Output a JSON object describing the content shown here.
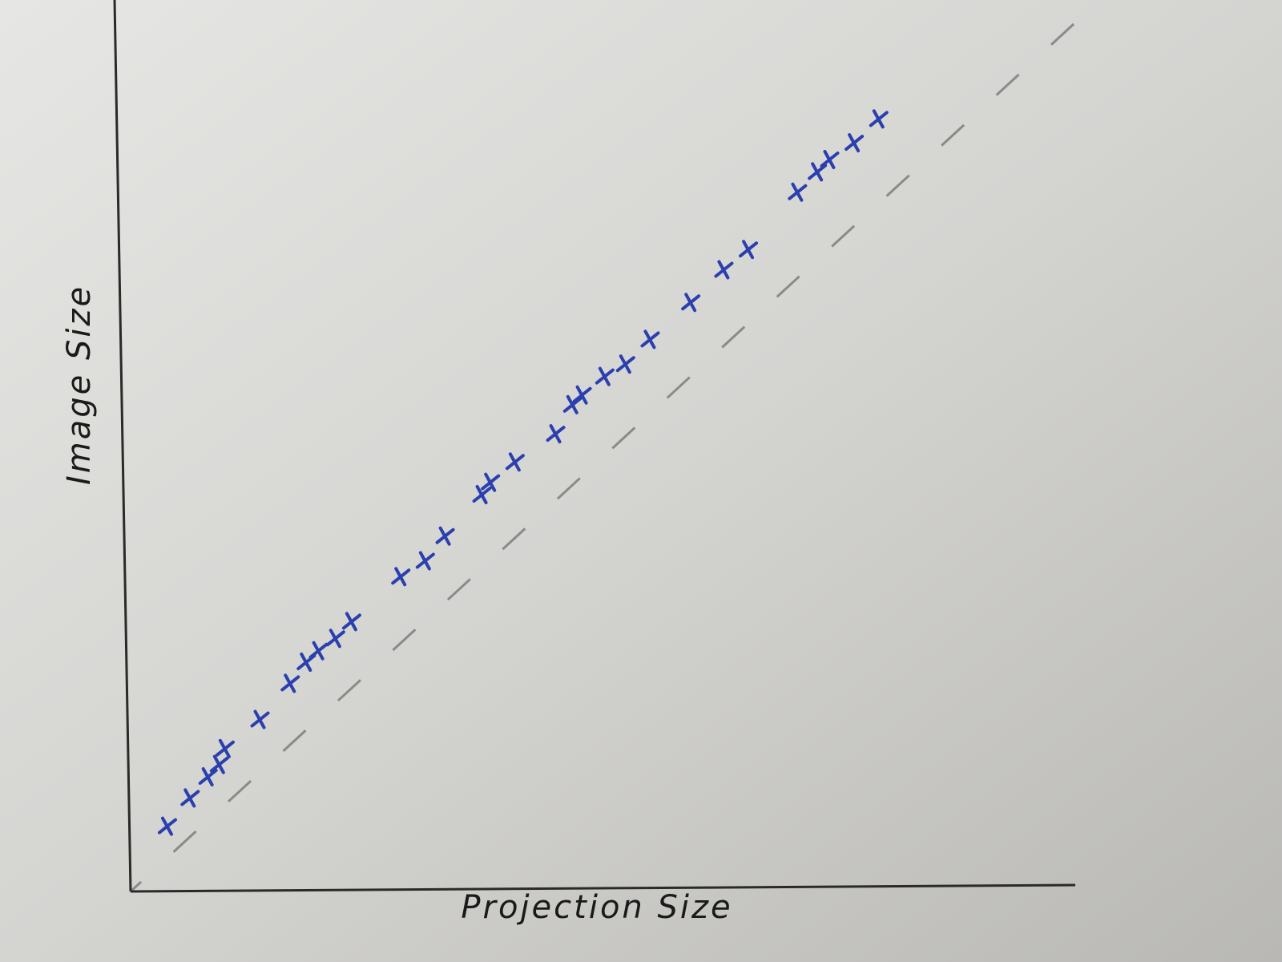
{
  "chart_data": {
    "type": "scatter",
    "x_label": "Projection Size",
    "y_label": "Image Size",
    "xlim": [
      0,
      100
    ],
    "ylim": [
      0,
      100
    ],
    "color": "#2b3fae",
    "x": [
      3.9,
      6.3,
      8.2,
      9.4,
      10.0,
      13.7,
      16.9,
      18.6,
      19.9,
      21.7,
      23.4,
      28.6,
      31.2,
      33.3,
      37.2,
      38.1,
      40.7,
      45.0,
      46.8,
      47.8,
      50.2,
      52.4,
      55.0,
      59.3,
      62.8,
      65.4,
      70.6,
      72.7,
      74.0,
      76.6,
      79.2
    ],
    "values": [
      7.4,
      10.6,
      13.0,
      14.4,
      16.2,
      19.5,
      23.6,
      26.0,
      27.3,
      28.7,
      30.6,
      35.7,
      37.5,
      40.3,
      45.0,
      46.4,
      48.7,
      51.9,
      55.2,
      56.3,
      58.4,
      59.8,
      62.6,
      66.8,
      70.5,
      72.8,
      79.3,
      81.6,
      83.0,
      84.9,
      87.6
    ]
  }
}
